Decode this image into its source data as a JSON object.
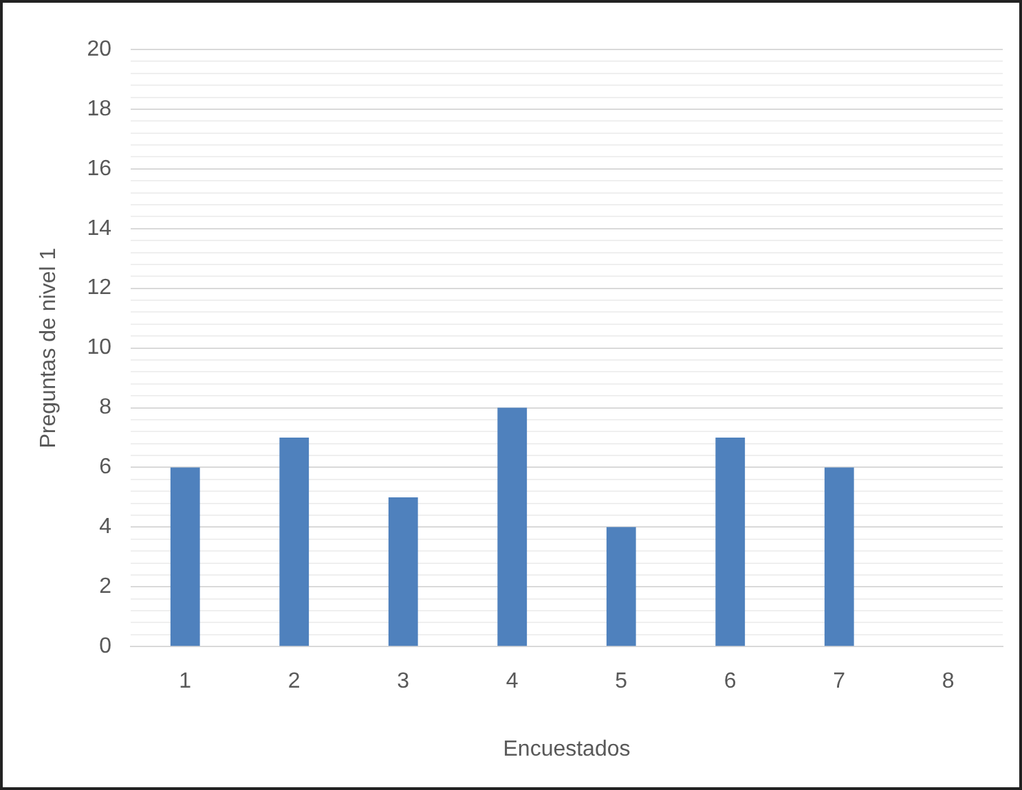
{
  "chart_data": {
    "type": "bar",
    "xlabel": "Encuestados",
    "ylabel": "Preguntas de nivel 1",
    "categories": [
      "1",
      "2",
      "3",
      "4",
      "5",
      "6",
      "7",
      "8"
    ],
    "values": [
      6,
      7,
      5,
      8,
      4,
      7,
      6,
      null
    ],
    "color": "#4f81bd",
    "ylim": [
      0,
      20
    ],
    "yticks": [
      0,
      {
        "value": 0.4,
        "label": null
      },
      {
        "value": 0.8,
        "label": null
      },
      {
        "value": 1.2,
        "label": null
      },
      {
        "value": 1.6,
        "label": null
      },
      2,
      {
        "value": 2.4,
        "label": null
      },
      {
        "value": 2.8,
        "label": null
      },
      {
        "value": 3.2,
        "label": null
      },
      {
        "value": 3.6,
        "label": null
      },
      4,
      {
        "value": 4.4,
        "label": null
      },
      {
        "value": 4.8,
        "label": null
      },
      {
        "value": 5.2,
        "label": null
      },
      {
        "value": 5.6,
        "label": null
      },
      6,
      {
        "value": 6.4,
        "label": null
      },
      {
        "value": 6.8,
        "label": null
      },
      {
        "value": 7.2,
        "label": null
      },
      {
        "value": 7.6,
        "label": null
      },
      8,
      {
        "value": 8.4,
        "label": null
      },
      {
        "value": 8.8,
        "label": null
      },
      {
        "value": 9.2,
        "label": null
      },
      {
        "value": 9.6,
        "label": null
      },
      10,
      {
        "value": 10.4,
        "label": null
      },
      {
        "value": 10.8,
        "label": null
      },
      {
        "value": 11.2,
        "label": null
      },
      {
        "value": 11.6,
        "label": null
      },
      12,
      {
        "value": 12.4,
        "label": null
      },
      {
        "value": 12.8,
        "label": null
      },
      {
        "value": 13.2,
        "label": null
      },
      {
        "value": 13.6,
        "label": null
      },
      14,
      {
        "value": 14.4,
        "label": null
      },
      {
        "value": 14.8,
        "label": null
      },
      {
        "value": 15.2,
        "label": null
      },
      {
        "value": 15.6,
        "label": null
      },
      16,
      {
        "value": 16.4,
        "label": null
      },
      {
        "value": 16.8,
        "label": null
      },
      {
        "value": 17.2,
        "label": null
      },
      {
        "value": 17.6,
        "label": null
      },
      18,
      {
        "value": 18.4,
        "label": null
      },
      {
        "value": 18.8,
        "label": null
      },
      {
        "value": 19.2,
        "label": null
      },
      {
        "value": 19.6,
        "label": null
      },
      20
    ],
    "grid": "y"
  }
}
